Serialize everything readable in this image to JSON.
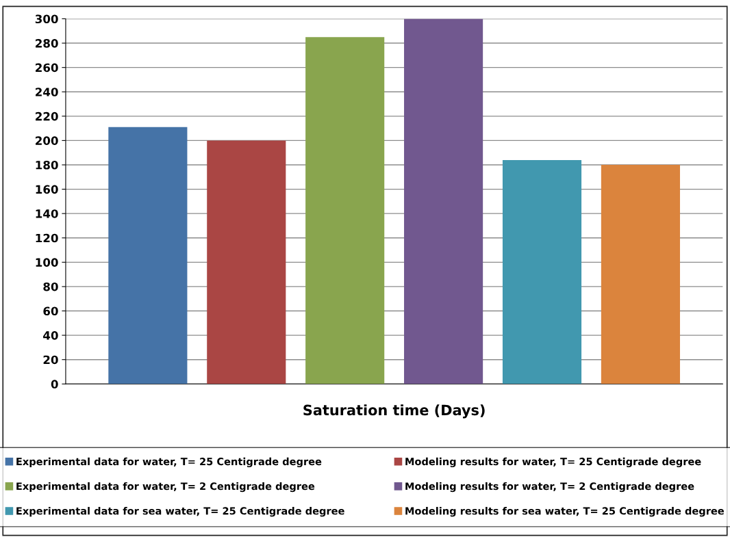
{
  "chart_data": {
    "type": "bar",
    "xlabel": "Saturation time (Days)",
    "categories": [
      null
    ],
    "series": [
      {
        "name": "Experimental data for water, T= 25 Centigrade degree",
        "color": "#4573a7",
        "values": [
          211
        ]
      },
      {
        "name": "Modeling results for water, T= 25 Centigrade degree",
        "color": "#aa4644",
        "values": [
          200
        ]
      },
      {
        "name": "Experimental data for water, T= 2 Centigrade degree",
        "color": "#89a54e",
        "values": [
          285
        ]
      },
      {
        "name": "Modeling results for water, T= 2 Centigrade degree",
        "color": "#71588f",
        "values": [
          300
        ]
      },
      {
        "name": "Experimental data for sea water, T= 25 Centigrade degree",
        "color": "#4198af",
        "values": [
          184
        ]
      },
      {
        "name": "Modeling results for sea water, T= 25 Centigrade degree",
        "color": "#db843d",
        "values": [
          180
        ]
      }
    ],
    "ylim": [
      0,
      300
    ],
    "yticks": [
      0,
      20,
      40,
      60,
      80,
      100,
      120,
      140,
      160,
      180,
      200,
      220,
      240,
      260,
      280,
      300
    ],
    "grid": "y",
    "legend": "bottom"
  }
}
